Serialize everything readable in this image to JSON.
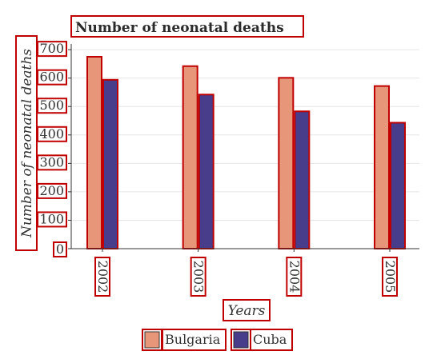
{
  "chart_data": {
    "type": "bar",
    "title": "Number of neonatal deaths",
    "xlabel": "Years",
    "ylabel": "Number of neonatal deaths",
    "categories": [
      "2002",
      "2003",
      "2004",
      "2005"
    ],
    "series": [
      {
        "name": "Bulgaria",
        "color": "#e8967a",
        "values": [
          675,
          642,
          601,
          572
        ]
      },
      {
        "name": "Cuba",
        "color": "#483d8b",
        "values": [
          594,
          542,
          483,
          443
        ]
      }
    ],
    "ylim": [
      0,
      720
    ],
    "yticks": [
      0,
      100,
      200,
      300,
      400,
      500,
      600,
      700
    ],
    "grid": true,
    "legend": "bottom"
  }
}
